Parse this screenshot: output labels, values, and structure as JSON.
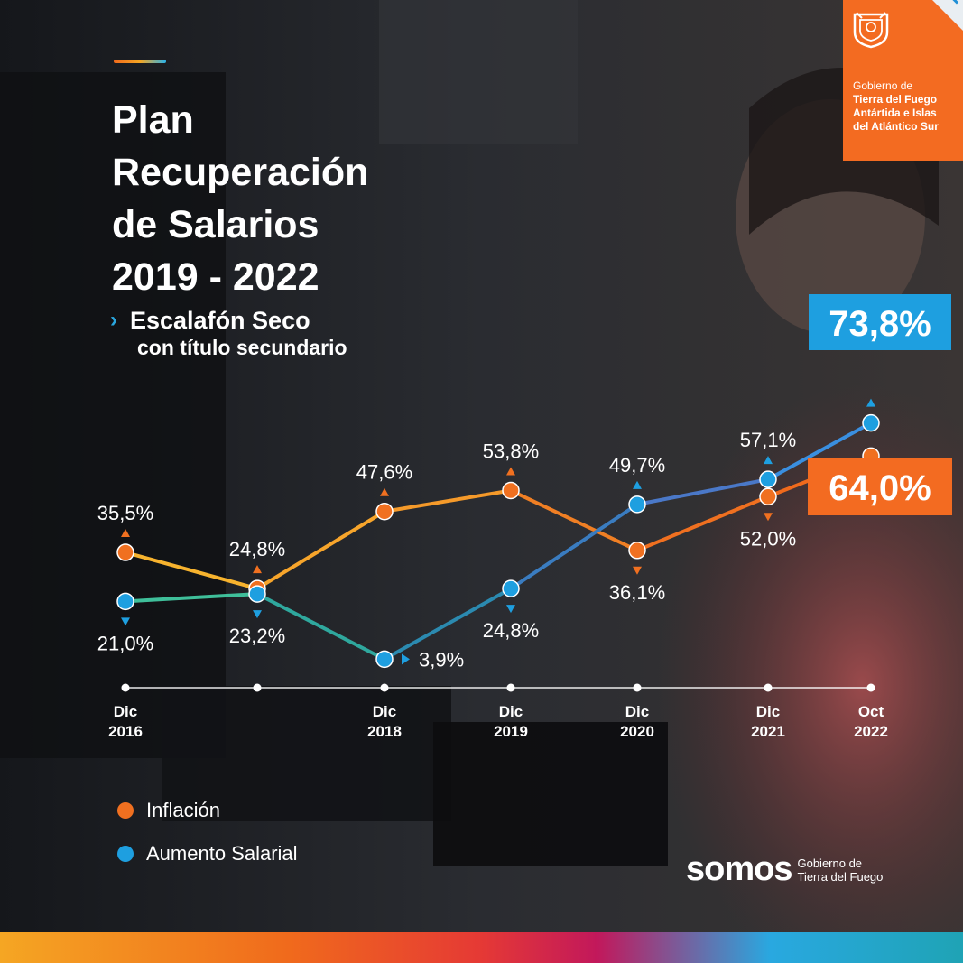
{
  "title_lines": [
    "Plan",
    "Recuperación",
    "de Salarios",
    "2019 - 2022"
  ],
  "subtitle": {
    "line1": "Escalafón Seco",
    "line2": "con título secundario",
    "arrow_icon": "chevron-right-dotted"
  },
  "government_badge": {
    "lines": [
      "Gobierno de",
      "Tierra del Fuego",
      "Antártida e Islas",
      "del Atlántico Sur"
    ],
    "color": "#f36b21"
  },
  "brand": {
    "word": "somos",
    "lines": [
      "Gobierno de",
      "Tierra del Fuego"
    ]
  },
  "legend": [
    {
      "label": "Inflación",
      "color": "#f07020"
    },
    {
      "label": "Aumento Salarial",
      "color": "#1e9fe0"
    }
  ],
  "chart_data": {
    "type": "line",
    "x_ticks": [
      {
        "label": [
          "Dic",
          "2016"
        ]
      },
      {
        "label": [
          "",
          ""
        ]
      },
      {
        "label": [
          "Dic",
          "2018"
        ]
      },
      {
        "label": [
          "Dic",
          "2019"
        ]
      },
      {
        "label": [
          "Dic",
          "2020"
        ]
      },
      {
        "label": [
          "Dic",
          "2021"
        ]
      },
      {
        "label": [
          "Oct",
          "2022"
        ]
      }
    ],
    "series": [
      {
        "name": "Inflación",
        "color": "#f07020",
        "values": [
          35.5,
          24.8,
          47.6,
          53.8,
          36.1,
          52.0,
          64.0
        ],
        "labels": [
          "35,5%",
          "24,8%",
          "47,6%",
          "53,8%",
          "36,1%",
          "52,0%",
          "64,0%"
        ]
      },
      {
        "name": "Aumento Salarial",
        "color": "#1e9fe0",
        "values": [
          21.0,
          23.2,
          3.9,
          24.8,
          49.7,
          57.1,
          73.8
        ],
        "labels": [
          "21,0%",
          "23,2%",
          "3,9%",
          "24,8%",
          "49,7%",
          "57,1%",
          "73,8%"
        ]
      }
    ]
  }
}
